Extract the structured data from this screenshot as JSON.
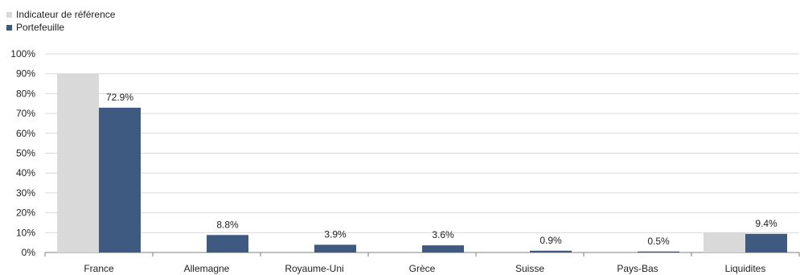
{
  "chart_data": {
    "type": "bar",
    "categories": [
      "France",
      "Allemagne",
      "Royaume-Uni",
      "Grèce",
      "Suisse",
      "Pays-Bas",
      "Liquidites"
    ],
    "series": [
      {
        "name": "Indicateur de référence",
        "values": [
          90.0,
          0,
          0,
          0,
          0,
          0,
          10.0
        ],
        "color": "#d9d9d9"
      },
      {
        "name": "Portefeuille",
        "values": [
          72.9,
          8.8,
          3.9,
          3.6,
          0.9,
          0.5,
          9.4
        ],
        "color": "#3e5a80"
      }
    ],
    "data_labels": [
      "72.9%",
      "8.8%",
      "3.9%",
      "3.6%",
      "0.9%",
      "0.5%",
      "9.4%"
    ],
    "y_ticks": [
      "0%",
      "10%",
      "20%",
      "30%",
      "40%",
      "50%",
      "60%",
      "70%",
      "80%",
      "90%",
      "100%"
    ],
    "ylim": [
      0,
      100
    ],
    "grid": true,
    "legend_position": "top-left"
  }
}
